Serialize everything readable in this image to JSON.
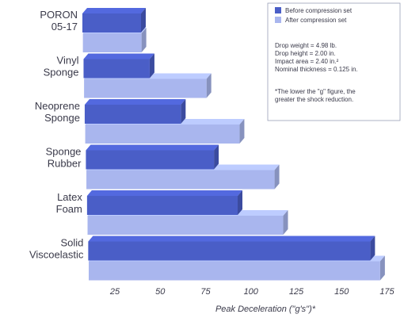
{
  "chart_data": {
    "type": "bar",
    "orientation": "horizontal",
    "style": "3d-perspective",
    "categories": [
      [
        "PORON",
        "05-17"
      ],
      [
        "Vinyl",
        "Sponge"
      ],
      [
        "Neoprene",
        "Sponge"
      ],
      [
        "Sponge",
        "Rubber"
      ],
      [
        "Latex",
        "Foam"
      ],
      [
        "Solid",
        "Viscoelastic"
      ]
    ],
    "series": [
      {
        "name": "Before compression set",
        "color": "#4a5ec7",
        "values": [
          52,
          56,
          72,
          89,
          101,
          171
        ]
      },
      {
        "name": "After compression set",
        "color": "#a9b6ee",
        "values": [
          52,
          86,
          103,
          121,
          125,
          176
        ]
      }
    ],
    "xlabel": "Peak Deceleration (\"g's\")*",
    "xticks": [
      25,
      50,
      75,
      100,
      125,
      150,
      175
    ],
    "xlim": [
      25,
      175
    ],
    "legend_position": "top-right",
    "notes": [
      "Drop weight = 4.98 lb.",
      "Drop height = 2.00 in.",
      "Impact area = 2.40 in.²",
      "Nominal thickness = 0.125 in."
    ],
    "footnote": [
      "*The lower the \"g\" figure, the",
      "greater the shock reduction."
    ]
  }
}
